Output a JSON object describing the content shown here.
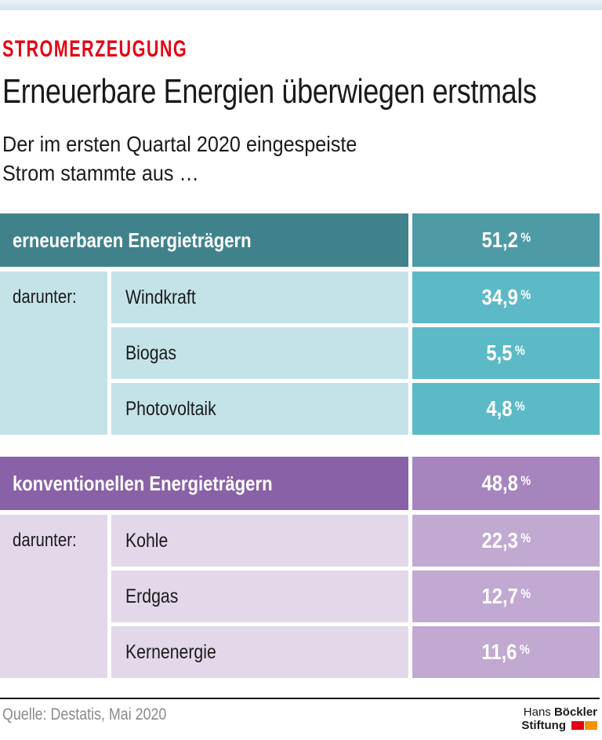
{
  "page": {
    "kicker": "STROMERZEUGUNG",
    "title": "Erneuerbare Energien überwiegen erstmals",
    "subtitle_line1": "Der im ersten Quartal 2020 eingespeiste",
    "subtitle_line2": "Strom stammte aus …"
  },
  "percent_sign": "%",
  "tables": [
    {
      "theme": "teal",
      "header": {
        "label": "erneuerbaren Energieträgern",
        "value": "51,2"
      },
      "darunter_label": "darunter:",
      "rows": [
        {
          "label": "Windkraft",
          "value": "34,9"
        },
        {
          "label": "Biogas",
          "value": "5,5"
        },
        {
          "label": "Photovoltaik",
          "value": "4,8"
        }
      ]
    },
    {
      "theme": "purple",
      "header": {
        "label": "konventionellen Energieträgern",
        "value": "48,8"
      },
      "darunter_label": "darunter:",
      "rows": [
        {
          "label": "Kohle",
          "value": "22,3"
        },
        {
          "label": "Erdgas",
          "value": "12,7"
        },
        {
          "label": "Kernenergie",
          "value": "11,6"
        }
      ]
    }
  ],
  "footer": {
    "source": "Quelle: Destatis, Mai 2020",
    "logo": {
      "line1_regular": "Hans",
      "line1_bold": "Böckler",
      "line2_bold": "Stiftung"
    }
  },
  "colors": {
    "kicker_red": "#e30613",
    "top_bar_blue": "#d9e8f1",
    "teal_header": "#40828c",
    "teal_header_value": "#4f9ba5",
    "teal_light": "#c4e3e8",
    "teal_value": "#5cbac6",
    "purple_header": "#8961a6",
    "purple_header_value": "#a685be",
    "purple_light": "#e3d8ea",
    "purple_value": "#c2a9d1",
    "logo_red": "#e2001a",
    "logo_orange": "#f39200",
    "source_gray": "#8a8a8a"
  },
  "chart_data": {
    "type": "table",
    "kicker": "STROMERZEUGUNG",
    "title": "Erneuerbare Energien überwiegen erstmals",
    "subtitle": "Der im ersten Quartal 2020 eingespeiste Strom stammte aus …",
    "unit": "%",
    "groups": [
      {
        "name": "erneuerbaren Energieträgern",
        "value": 51.2,
        "children": [
          {
            "name": "Windkraft",
            "value": 34.9
          },
          {
            "name": "Biogas",
            "value": 5.5
          },
          {
            "name": "Photovoltaik",
            "value": 4.8
          }
        ]
      },
      {
        "name": "konventionellen Energieträgern",
        "value": 48.8,
        "children": [
          {
            "name": "Kohle",
            "value": 22.3
          },
          {
            "name": "Erdgas",
            "value": 12.7
          },
          {
            "name": "Kernenergie",
            "value": 11.6
          }
        ]
      }
    ],
    "source": "Quelle: Destatis, Mai 2020"
  }
}
